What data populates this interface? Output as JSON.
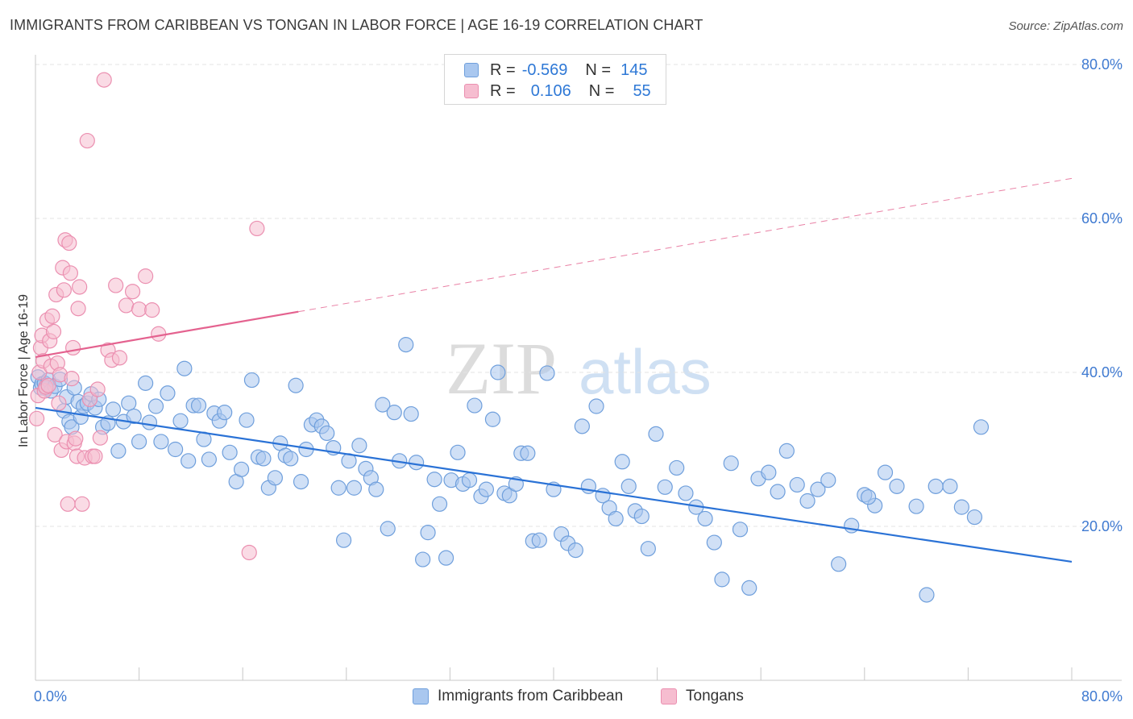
{
  "header": {
    "title": "IMMIGRANTS FROM CARIBBEAN VS TONGAN IN LABOR FORCE | AGE 16-19 CORRELATION CHART",
    "source": "Source: ZipAtlas.com"
  },
  "watermark": {
    "zip": "ZIP",
    "atlas": "atlas"
  },
  "stats_legend": {
    "rows": [
      {
        "r_label": "R =",
        "r_value": "-0.569",
        "n_label": "N =",
        "n_value": "145"
      },
      {
        "r_label": "R =",
        "r_value": "0.106",
        "n_label": "N =",
        "n_value": "55"
      }
    ]
  },
  "bottom_legend": {
    "items": [
      "Immigrants from Caribbean",
      "Tongans"
    ]
  },
  "colors": {
    "blue_fill": "#a9c7ef",
    "blue_stroke": "#6f9fdc",
    "blue_line": "#2a72d6",
    "pink_fill": "#f6bdd0",
    "pink_stroke": "#eb8fb0",
    "pink_line": "#e4628f",
    "axis_text": "#3f7ad1",
    "grid": "#e3e3e3"
  },
  "chart_data": {
    "type": "scatter",
    "title": "IMMIGRANTS FROM CARIBBEAN VS TONGAN IN LABOR FORCE | AGE 16-19 CORRELATION CHART",
    "xlabel": "",
    "ylabel": "In Labor Force | Age 16-19",
    "xlim": [
      0,
      80
    ],
    "ylim": [
      0,
      80
    ],
    "x_tick_labels": [
      "0.0%",
      "80.0%"
    ],
    "y_tick_labels": [
      "20.0%",
      "40.0%",
      "60.0%",
      "80.0%"
    ],
    "y_grid": [
      20,
      40,
      60,
      80
    ],
    "series": [
      {
        "name": "Immigrants from Caribbean",
        "color": "#6f9fdc",
        "R": -0.569,
        "N": 145,
        "trend": {
          "x0": 0,
          "y0": 35.4,
          "x1": 80,
          "y1": 15.4,
          "dashed_from": null
        },
        "points": [
          [
            0.2,
            39.4
          ],
          [
            0.4,
            38.0
          ],
          [
            0.5,
            38.5
          ],
          [
            0.7,
            38.6
          ],
          [
            0.8,
            37.9
          ],
          [
            1.0,
            39.0
          ],
          [
            1.2,
            37.6
          ],
          [
            1.5,
            38.2
          ],
          [
            1.9,
            39.1
          ],
          [
            2.2,
            35.0
          ],
          [
            2.4,
            36.8
          ],
          [
            2.6,
            33.6
          ],
          [
            2.8,
            32.9
          ],
          [
            3.0,
            38.0
          ],
          [
            3.3,
            36.2
          ],
          [
            3.5,
            34.2
          ],
          [
            3.7,
            35.6
          ],
          [
            4.0,
            36.0
          ],
          [
            4.3,
            37.2
          ],
          [
            4.6,
            35.4
          ],
          [
            4.9,
            36.5
          ],
          [
            5.2,
            32.9
          ],
          [
            5.6,
            33.4
          ],
          [
            6.0,
            35.2
          ],
          [
            6.4,
            29.8
          ],
          [
            6.8,
            33.6
          ],
          [
            7.2,
            36.0
          ],
          [
            7.6,
            34.3
          ],
          [
            8.0,
            31.0
          ],
          [
            8.5,
            38.6
          ],
          [
            8.8,
            33.5
          ],
          [
            9.3,
            35.6
          ],
          [
            9.7,
            31.0
          ],
          [
            10.2,
            37.3
          ],
          [
            10.8,
            30.0
          ],
          [
            11.2,
            33.7
          ],
          [
            11.5,
            40.5
          ],
          [
            11.8,
            28.5
          ],
          [
            12.2,
            35.7
          ],
          [
            12.6,
            35.7
          ],
          [
            13.0,
            31.3
          ],
          [
            13.4,
            28.7
          ],
          [
            13.8,
            34.7
          ],
          [
            14.2,
            33.7
          ],
          [
            14.6,
            34.8
          ],
          [
            15.0,
            29.6
          ],
          [
            15.5,
            25.8
          ],
          [
            15.9,
            27.4
          ],
          [
            16.3,
            33.8
          ],
          [
            16.7,
            39.0
          ],
          [
            17.2,
            29.0
          ],
          [
            17.6,
            28.8
          ],
          [
            18.0,
            25.0
          ],
          [
            18.5,
            26.3
          ],
          [
            18.9,
            30.8
          ],
          [
            19.3,
            29.2
          ],
          [
            19.7,
            28.8
          ],
          [
            20.1,
            38.3
          ],
          [
            20.5,
            25.8
          ],
          [
            20.9,
            30.0
          ],
          [
            21.3,
            33.2
          ],
          [
            21.7,
            33.8
          ],
          [
            22.1,
            33.0
          ],
          [
            22.5,
            32.1
          ],
          [
            23.0,
            30.2
          ],
          [
            23.4,
            25.0
          ],
          [
            23.8,
            18.2
          ],
          [
            24.2,
            28.5
          ],
          [
            24.6,
            25.0
          ],
          [
            25.0,
            30.5
          ],
          [
            25.5,
            27.5
          ],
          [
            25.9,
            26.3
          ],
          [
            26.3,
            24.8
          ],
          [
            26.8,
            35.8
          ],
          [
            27.2,
            19.7
          ],
          [
            27.7,
            34.8
          ],
          [
            28.1,
            28.5
          ],
          [
            28.6,
            43.6
          ],
          [
            29.0,
            34.6
          ],
          [
            29.4,
            28.3
          ],
          [
            29.9,
            15.7
          ],
          [
            30.3,
            19.2
          ],
          [
            30.8,
            26.1
          ],
          [
            31.2,
            22.9
          ],
          [
            31.7,
            15.9
          ],
          [
            32.1,
            26.0
          ],
          [
            32.6,
            29.6
          ],
          [
            33.0,
            25.5
          ],
          [
            33.5,
            26.0
          ],
          [
            33.9,
            35.7
          ],
          [
            34.4,
            23.9
          ],
          [
            34.8,
            24.8
          ],
          [
            35.3,
            33.9
          ],
          [
            35.7,
            40.0
          ],
          [
            36.2,
            24.3
          ],
          [
            36.6,
            24.0
          ],
          [
            37.1,
            25.5
          ],
          [
            37.5,
            29.5
          ],
          [
            38.0,
            29.5
          ],
          [
            38.4,
            18.1
          ],
          [
            38.9,
            18.2
          ],
          [
            39.5,
            39.9
          ],
          [
            40.0,
            24.8
          ],
          [
            40.6,
            19.0
          ],
          [
            41.1,
            17.8
          ],
          [
            41.7,
            16.9
          ],
          [
            42.2,
            33.0
          ],
          [
            42.7,
            25.2
          ],
          [
            43.3,
            35.6
          ],
          [
            43.8,
            24.0
          ],
          [
            44.3,
            22.4
          ],
          [
            44.8,
            21.0
          ],
          [
            45.3,
            28.4
          ],
          [
            45.8,
            25.2
          ],
          [
            46.3,
            22.0
          ],
          [
            46.8,
            21.3
          ],
          [
            47.3,
            17.1
          ],
          [
            47.9,
            32.0
          ],
          [
            48.6,
            25.1
          ],
          [
            49.5,
            27.6
          ],
          [
            50.2,
            24.3
          ],
          [
            51.0,
            22.5
          ],
          [
            51.7,
            21.0
          ],
          [
            52.4,
            17.9
          ],
          [
            53.0,
            13.1
          ],
          [
            53.7,
            28.2
          ],
          [
            54.4,
            19.6
          ],
          [
            55.1,
            12.0
          ],
          [
            55.8,
            26.2
          ],
          [
            56.6,
            27.0
          ],
          [
            57.3,
            24.5
          ],
          [
            58.0,
            29.8
          ],
          [
            58.8,
            25.4
          ],
          [
            59.6,
            23.3
          ],
          [
            60.4,
            24.8
          ],
          [
            61.2,
            26.0
          ],
          [
            62.0,
            15.1
          ],
          [
            63.0,
            20.1
          ],
          [
            64.0,
            24.1
          ],
          [
            64.8,
            22.7
          ],
          [
            65.6,
            27.0
          ],
          [
            66.5,
            25.2
          ],
          [
            68.0,
            22.6
          ],
          [
            69.5,
            25.2
          ],
          [
            70.6,
            25.2
          ],
          [
            71.5,
            22.5
          ],
          [
            72.5,
            21.2
          ],
          [
            68.8,
            11.1
          ],
          [
            73.0,
            32.9
          ],
          [
            64.3,
            23.8
          ]
        ]
      },
      {
        "name": "Tongans",
        "color": "#eb8fb0",
        "R": 0.106,
        "N": 55,
        "trend": {
          "x0": 0,
          "y0": 42.0,
          "x1": 80,
          "y1": 65.2,
          "dashed_from": 20.3
        },
        "points": [
          [
            0.1,
            34.0
          ],
          [
            0.2,
            37.0
          ],
          [
            0.3,
            40.0
          ],
          [
            0.4,
            43.2
          ],
          [
            0.5,
            44.8
          ],
          [
            0.6,
            41.5
          ],
          [
            0.7,
            37.6
          ],
          [
            0.8,
            38.1
          ],
          [
            0.9,
            46.8
          ],
          [
            1.0,
            38.3
          ],
          [
            1.1,
            44.1
          ],
          [
            1.2,
            40.8
          ],
          [
            1.3,
            47.3
          ],
          [
            1.4,
            45.3
          ],
          [
            1.5,
            31.9
          ],
          [
            1.6,
            50.1
          ],
          [
            1.7,
            41.2
          ],
          [
            1.8,
            36.0
          ],
          [
            1.9,
            39.7
          ],
          [
            2.0,
            29.9
          ],
          [
            2.1,
            53.6
          ],
          [
            2.2,
            50.7
          ],
          [
            2.3,
            57.2
          ],
          [
            2.4,
            31.0
          ],
          [
            2.5,
            22.9
          ],
          [
            2.6,
            56.8
          ],
          [
            2.7,
            52.9
          ],
          [
            2.8,
            39.2
          ],
          [
            2.9,
            43.2
          ],
          [
            3.0,
            30.8
          ],
          [
            3.1,
            31.4
          ],
          [
            3.2,
            29.1
          ],
          [
            3.3,
            48.3
          ],
          [
            3.4,
            51.1
          ],
          [
            3.6,
            22.9
          ],
          [
            3.8,
            28.9
          ],
          [
            4.0,
            70.1
          ],
          [
            4.2,
            36.5
          ],
          [
            4.4,
            29.1
          ],
          [
            4.6,
            29.1
          ],
          [
            4.8,
            37.8
          ],
          [
            5.0,
            31.5
          ],
          [
            5.3,
            78.0
          ],
          [
            5.6,
            42.9
          ],
          [
            5.9,
            41.6
          ],
          [
            6.2,
            51.3
          ],
          [
            6.5,
            41.9
          ],
          [
            7.0,
            48.7
          ],
          [
            7.5,
            50.5
          ],
          [
            8.0,
            48.2
          ],
          [
            8.5,
            52.5
          ],
          [
            9.0,
            48.1
          ],
          [
            9.5,
            45.0
          ],
          [
            16.5,
            16.6
          ],
          [
            17.1,
            58.7
          ]
        ]
      }
    ]
  }
}
